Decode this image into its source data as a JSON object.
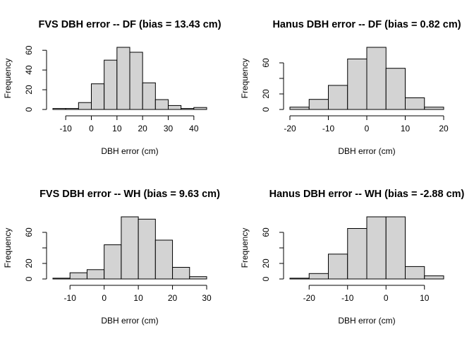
{
  "chart_data": [
    {
      "type": "histogram",
      "title": "FVS DBH error -- DF (bias = 13.43 cm)",
      "xlabel": "DBH error (cm)",
      "ylabel": "Frequency",
      "color": "#d3d3d3",
      "bins": [
        -15,
        -10,
        -5,
        0,
        5,
        10,
        15,
        20,
        25,
        30,
        35,
        40,
        45
      ],
      "counts": [
        1,
        1,
        7,
        26,
        50,
        63,
        58,
        27,
        10,
        4,
        1,
        2
      ],
      "xlim": [
        -15,
        45
      ],
      "ylim": [
        0,
        63
      ],
      "xticks": [
        -10,
        0,
        10,
        20,
        30,
        40
      ],
      "yticks": [
        0,
        20,
        40,
        60
      ]
    },
    {
      "type": "histogram",
      "title": "Hanus DBH error -- DF (bias = 0.82 cm)",
      "xlabel": "DBH error (cm)",
      "ylabel": "Frequency",
      "color": "#d3d3d3",
      "bins": [
        -20,
        -15,
        -10,
        -5,
        0,
        5,
        10,
        15,
        20
      ],
      "counts": [
        3,
        13,
        31,
        65,
        80,
        53,
        15,
        3
      ],
      "xlim": [
        -20,
        20
      ],
      "ylim": [
        0,
        80
      ],
      "xticks": [
        -20,
        -10,
        0,
        10,
        20
      ],
      "yticks": [
        0,
        20,
        {
          "value": 40,
          "label": null
        },
        60
      ]
    },
    {
      "type": "histogram",
      "title": "FVS DBH error -- WH (bias = 9.63 cm)",
      "xlabel": "DBH error (cm)",
      "ylabel": "Frequency",
      "color": "#d3d3d3",
      "bins": [
        -15,
        -10,
        -5,
        0,
        5,
        10,
        15,
        20,
        25,
        30
      ],
      "counts": [
        1,
        8,
        12,
        44,
        80,
        77,
        50,
        15,
        3
      ],
      "xlim": [
        -15,
        30
      ],
      "ylim": [
        0,
        80
      ],
      "xticks": [
        -10,
        0,
        10,
        20,
        30
      ],
      "yticks": [
        0,
        20,
        {
          "value": 40,
          "label": null
        },
        60
      ]
    },
    {
      "type": "histogram",
      "title": "Hanus DBH error -- WH (bias = -2.88 cm)",
      "xlabel": "DBH error (cm)",
      "ylabel": "Frequency",
      "color": "#d3d3d3",
      "bins": [
        -25,
        -20,
        -15,
        -10,
        -5,
        0,
        5,
        10,
        15
      ],
      "counts": [
        1,
        7,
        32,
        65,
        80,
        80,
        16,
        4
      ],
      "xlim": [
        -25,
        15
      ],
      "ylim": [
        0,
        80
      ],
      "xticks": [
        -20,
        -10,
        0,
        10
      ],
      "yticks": [
        0,
        20,
        {
          "value": 40,
          "label": null
        },
        60
      ]
    }
  ]
}
